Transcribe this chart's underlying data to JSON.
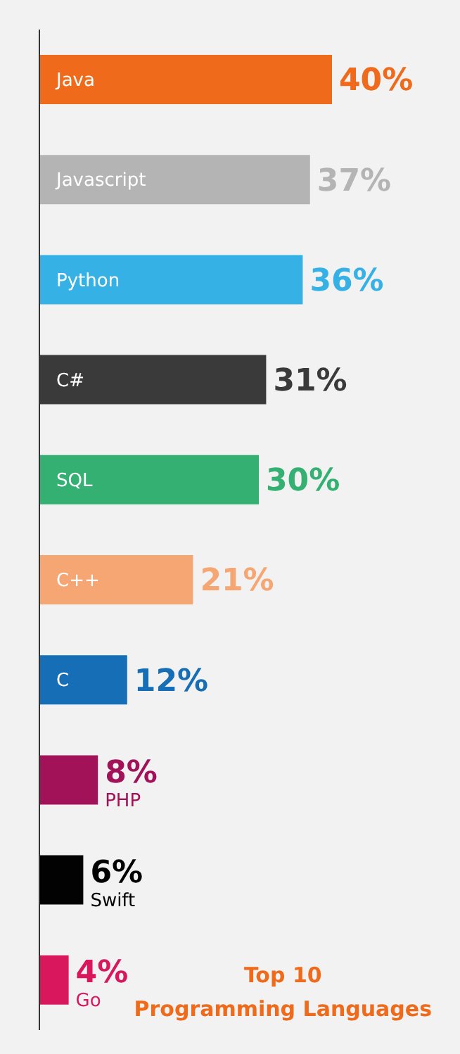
{
  "chart_data": {
    "type": "bar",
    "orientation": "horizontal",
    "title": "Top 10\nProgramming Languages",
    "categories": [
      "Java",
      "Javascript",
      "Python",
      "C#",
      "SQL",
      "C++",
      "C",
      "PHP",
      "Swift",
      "Go"
    ],
    "values": [
      40,
      37,
      36,
      31,
      30,
      21,
      12,
      8,
      6,
      4
    ],
    "value_labels": [
      "40%",
      "37%",
      "36%",
      "31%",
      "30%",
      "21%",
      "12%",
      "8%",
      "6%",
      "4%"
    ],
    "colors": [
      "#ef6a1a",
      "#b4b4b4",
      "#35b1e6",
      "#3a3a3a",
      "#35b073",
      "#f5a672",
      "#166fb6",
      "#a11259",
      "#020202",
      "#d8175c"
    ]
  }
}
